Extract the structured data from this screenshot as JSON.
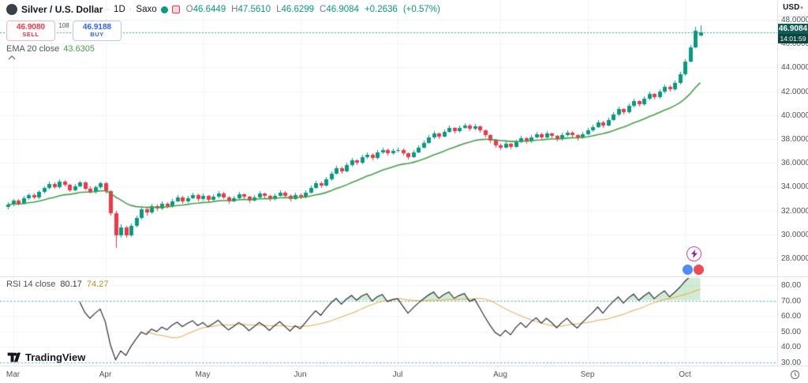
{
  "app": {
    "symbol": "Silver / U.S. Dollar",
    "sep": "·",
    "interval": "1D",
    "provider": "Saxo",
    "ohlc": {
      "oL": "O",
      "o": "46.6449",
      "hL": "H",
      "h": "47.5610",
      "lL": "L",
      "l": "46.6299",
      "cL": "C",
      "c": "46.9084",
      "chg": "+0.2636",
      "chgPct": "(+0.57%)"
    },
    "sell": {
      "price": "46.9080",
      "label": "SELL"
    },
    "spread": "108",
    "buy": {
      "price": "46.9188",
      "label": "BUY"
    },
    "ema": {
      "title": "EMA 20 close",
      "value": "43.6305"
    },
    "rsi": {
      "title": "RSI 14 close",
      "value": "80.17",
      "ma": "74.27"
    }
  },
  "price_scale": {
    "currency": "USD",
    "caret": "▾",
    "last_price": "46.9084",
    "countdown": "14:01:59"
  },
  "logo": {
    "text": "TradingView"
  },
  "colors": {
    "up": "#089981",
    "down": "#f23645",
    "ema": "#43a047",
    "rsi": "#2a2e39",
    "rsi_ma": "#e8a33d",
    "level": "#22ab94",
    "level_fill": "rgba(76,175,80,0.25)",
    "grid": "#f0f3fa",
    "axis_border": "#e0e3eb",
    "text_dark": "#131722",
    "text_gray": "#787b86",
    "buy": "#2962ff",
    "sell": "#f23645",
    "last_label_bg": "#0f5c54",
    "countdown_bg": "#0a453f",
    "price_line": "#089981"
  },
  "chart_data": {
    "type": "candlestick",
    "title": "Silver / U.S. Dollar · 1D · Saxo",
    "last_price": 46.9084,
    "countdown": "14:01:59",
    "price_axis": {
      "min": 28,
      "max": 48,
      "step": 2,
      "tick_labels": [
        "48.0000",
        "46.0000",
        "44.0000",
        "42.0000",
        "40.0000",
        "38.0000",
        "36.0000",
        "34.0000",
        "32.0000",
        "30.0000",
        "28.0000"
      ]
    },
    "rsi_axis": {
      "min": 30,
      "max": 80,
      "step": 10,
      "overbought": 70,
      "oversold": 30,
      "tick_labels": [
        "80.00",
        "70.00",
        "60.00",
        "50.00",
        "40.00",
        "30.00"
      ]
    },
    "indicators": [
      {
        "name": "EMA",
        "period": 20,
        "source": "close",
        "last_value": 43.6305
      },
      {
        "name": "RSI",
        "period": 14,
        "source": "close",
        "last_value": 80.17,
        "ma_period": 14,
        "ma_last_value": 74.27
      }
    ],
    "month_ticks": [
      {
        "label": "Mar",
        "index": 1
      },
      {
        "label": "Apr",
        "index": 19
      },
      {
        "label": "May",
        "index": 38
      },
      {
        "label": "Jun",
        "index": 57
      },
      {
        "label": "Jul",
        "index": 76
      },
      {
        "label": "Aug",
        "index": 96
      },
      {
        "label": "Sep",
        "index": 113
      },
      {
        "label": "Oct",
        "index": 132
      }
    ],
    "candles": [
      [
        32.3,
        32.7,
        32.1,
        32.5
      ],
      [
        32.5,
        33.0,
        32.35,
        32.85
      ],
      [
        32.85,
        32.95,
        32.45,
        32.6
      ],
      [
        32.6,
        33.2,
        32.5,
        33.05
      ],
      [
        33.05,
        33.45,
        32.9,
        33.3
      ],
      [
        33.3,
        33.4,
        32.95,
        33.1
      ],
      [
        33.1,
        33.7,
        33.0,
        33.55
      ],
      [
        33.55,
        34.05,
        33.4,
        33.9
      ],
      [
        33.9,
        34.4,
        33.75,
        34.25
      ],
      [
        34.25,
        34.35,
        33.8,
        33.95
      ],
      [
        33.95,
        34.6,
        33.85,
        34.45
      ],
      [
        34.45,
        34.55,
        34.0,
        34.15
      ],
      [
        34.15,
        34.25,
        33.55,
        33.7
      ],
      [
        33.7,
        34.2,
        33.6,
        34.05
      ],
      [
        34.05,
        34.5,
        33.95,
        34.35
      ],
      [
        34.35,
        34.45,
        33.7,
        33.85
      ],
      [
        33.85,
        34.0,
        33.4,
        33.55
      ],
      [
        33.55,
        34.1,
        33.45,
        33.95
      ],
      [
        33.95,
        34.45,
        33.85,
        34.3
      ],
      [
        34.3,
        34.4,
        33.45,
        33.6
      ],
      [
        33.6,
        33.7,
        31.55,
        31.8
      ],
      [
        31.8,
        31.95,
        28.85,
        29.9
      ],
      [
        29.9,
        30.85,
        29.7,
        30.6
      ],
      [
        30.6,
        30.7,
        29.7,
        29.95
      ],
      [
        29.95,
        30.9,
        29.8,
        30.7
      ],
      [
        30.7,
        31.6,
        30.55,
        31.4
      ],
      [
        31.4,
        32.3,
        31.25,
        32.1
      ],
      [
        32.1,
        32.25,
        31.6,
        31.85
      ],
      [
        31.85,
        32.6,
        31.7,
        32.4
      ],
      [
        32.4,
        32.5,
        31.95,
        32.15
      ],
      [
        32.15,
        32.8,
        32.05,
        32.6
      ],
      [
        32.6,
        32.7,
        32.15,
        32.35
      ],
      [
        32.35,
        33.0,
        32.25,
        32.8
      ],
      [
        32.8,
        33.3,
        32.7,
        33.1
      ],
      [
        33.1,
        33.2,
        32.55,
        32.75
      ],
      [
        32.75,
        33.25,
        32.65,
        33.05
      ],
      [
        33.05,
        33.5,
        32.95,
        33.3
      ],
      [
        33.3,
        33.4,
        32.75,
        32.95
      ],
      [
        32.95,
        33.4,
        32.85,
        33.2
      ],
      [
        33.2,
        33.3,
        32.7,
        32.9
      ],
      [
        32.9,
        33.35,
        32.8,
        33.15
      ],
      [
        33.15,
        33.65,
        33.05,
        33.45
      ],
      [
        33.45,
        33.55,
        32.95,
        33.1
      ],
      [
        33.1,
        33.2,
        32.6,
        32.8
      ],
      [
        32.8,
        33.25,
        32.7,
        33.05
      ],
      [
        33.05,
        33.55,
        32.95,
        33.35
      ],
      [
        33.35,
        33.45,
        32.95,
        33.15
      ],
      [
        33.15,
        33.25,
        32.65,
        32.85
      ],
      [
        32.85,
        33.3,
        32.75,
        33.1
      ],
      [
        33.1,
        33.6,
        33.0,
        33.4
      ],
      [
        33.4,
        33.5,
        33.0,
        33.2
      ],
      [
        33.2,
        33.3,
        32.75,
        32.95
      ],
      [
        32.95,
        33.45,
        32.85,
        33.25
      ],
      [
        33.25,
        33.7,
        33.15,
        33.5
      ],
      [
        33.5,
        33.6,
        33.05,
        33.25
      ],
      [
        33.25,
        33.35,
        32.8,
        33.0
      ],
      [
        33.0,
        33.5,
        32.9,
        33.3
      ],
      [
        33.3,
        33.4,
        32.95,
        33.15
      ],
      [
        33.15,
        33.7,
        33.05,
        33.5
      ],
      [
        33.5,
        34.1,
        33.4,
        33.9
      ],
      [
        33.9,
        34.5,
        33.8,
        34.3
      ],
      [
        34.3,
        34.4,
        33.9,
        34.1
      ],
      [
        34.1,
        34.8,
        34.0,
        34.6
      ],
      [
        34.6,
        35.3,
        34.5,
        35.1
      ],
      [
        35.1,
        35.75,
        35.0,
        35.55
      ],
      [
        35.55,
        35.65,
        35.1,
        35.3
      ],
      [
        35.3,
        36.0,
        35.2,
        35.8
      ],
      [
        35.8,
        36.4,
        35.7,
        36.2
      ],
      [
        36.2,
        36.3,
        35.8,
        36.0
      ],
      [
        36.0,
        36.65,
        35.9,
        36.45
      ],
      [
        36.45,
        36.9,
        36.35,
        36.7
      ],
      [
        36.7,
        36.8,
        36.2,
        36.4
      ],
      [
        36.4,
        37.05,
        36.3,
        36.85
      ],
      [
        36.85,
        37.3,
        36.75,
        37.1
      ],
      [
        37.1,
        37.2,
        36.6,
        36.8
      ],
      [
        36.8,
        37.2,
        36.7,
        37.0
      ],
      [
        37.0,
        37.3,
        36.9,
        37.1
      ],
      [
        37.1,
        37.2,
        36.6,
        36.8
      ],
      [
        36.8,
        36.9,
        36.3,
        36.5
      ],
      [
        36.5,
        37.1,
        36.4,
        36.9
      ],
      [
        36.9,
        37.5,
        36.8,
        37.3
      ],
      [
        37.3,
        37.9,
        37.2,
        37.7
      ],
      [
        37.7,
        38.3,
        37.6,
        38.1
      ],
      [
        38.1,
        38.65,
        38.0,
        38.45
      ],
      [
        38.45,
        38.55,
        38.0,
        38.2
      ],
      [
        38.2,
        38.8,
        38.1,
        38.6
      ],
      [
        38.6,
        39.1,
        38.5,
        38.9
      ],
      [
        38.9,
        39.0,
        38.45,
        38.65
      ],
      [
        38.65,
        39.15,
        38.55,
        38.95
      ],
      [
        38.95,
        39.35,
        38.85,
        39.15
      ],
      [
        39.15,
        39.25,
        38.65,
        38.85
      ],
      [
        38.85,
        39.25,
        38.75,
        39.05
      ],
      [
        39.05,
        39.15,
        38.5,
        38.7
      ],
      [
        38.7,
        38.8,
        38.1,
        38.3
      ],
      [
        38.3,
        38.4,
        37.7,
        37.9
      ],
      [
        37.9,
        38.0,
        37.3,
        37.5
      ],
      [
        37.5,
        37.6,
        37.1,
        37.3
      ],
      [
        37.3,
        37.8,
        37.2,
        37.6
      ],
      [
        37.6,
        37.7,
        37.15,
        37.35
      ],
      [
        37.35,
        37.95,
        37.25,
        37.75
      ],
      [
        37.75,
        38.25,
        37.65,
        38.05
      ],
      [
        38.05,
        38.15,
        37.6,
        37.8
      ],
      [
        37.8,
        38.35,
        37.7,
        38.15
      ],
      [
        38.15,
        38.6,
        38.05,
        38.4
      ],
      [
        38.4,
        38.5,
        37.95,
        38.15
      ],
      [
        38.15,
        38.65,
        38.05,
        38.45
      ],
      [
        38.45,
        38.55,
        38.05,
        38.25
      ],
      [
        38.25,
        38.35,
        37.8,
        38.0
      ],
      [
        38.0,
        38.5,
        37.9,
        38.3
      ],
      [
        38.3,
        38.75,
        38.2,
        38.55
      ],
      [
        38.55,
        38.65,
        38.1,
        38.3
      ],
      [
        38.3,
        38.4,
        37.9,
        38.1
      ],
      [
        38.1,
        38.6,
        38.0,
        38.4
      ],
      [
        38.4,
        38.9,
        38.3,
        38.7
      ],
      [
        38.7,
        39.2,
        38.6,
        39.0
      ],
      [
        39.0,
        39.6,
        38.9,
        39.4
      ],
      [
        39.4,
        39.5,
        38.95,
        39.15
      ],
      [
        39.15,
        39.8,
        39.05,
        39.6
      ],
      [
        39.6,
        40.25,
        39.5,
        40.05
      ],
      [
        40.05,
        40.7,
        39.95,
        40.5
      ],
      [
        40.5,
        40.6,
        40.05,
        40.25
      ],
      [
        40.25,
        40.95,
        40.15,
        40.75
      ],
      [
        40.75,
        41.35,
        40.65,
        41.15
      ],
      [
        41.15,
        41.25,
        40.7,
        40.9
      ],
      [
        40.9,
        41.55,
        40.8,
        41.35
      ],
      [
        41.35,
        41.95,
        41.25,
        41.75
      ],
      [
        41.75,
        41.85,
        41.3,
        41.5
      ],
      [
        41.5,
        42.15,
        41.4,
        41.95
      ],
      [
        41.95,
        42.6,
        41.85,
        42.4
      ],
      [
        42.4,
        42.5,
        41.95,
        42.15
      ],
      [
        42.15,
        42.9,
        42.05,
        42.7
      ],
      [
        42.7,
        43.6,
        42.6,
        43.4
      ],
      [
        43.4,
        44.7,
        43.3,
        44.5
      ],
      [
        44.5,
        45.9,
        44.4,
        45.7
      ],
      [
        45.7,
        47.4,
        45.6,
        47.1
      ],
      [
        46.6449,
        47.561,
        46.6299,
        46.9084
      ]
    ]
  }
}
